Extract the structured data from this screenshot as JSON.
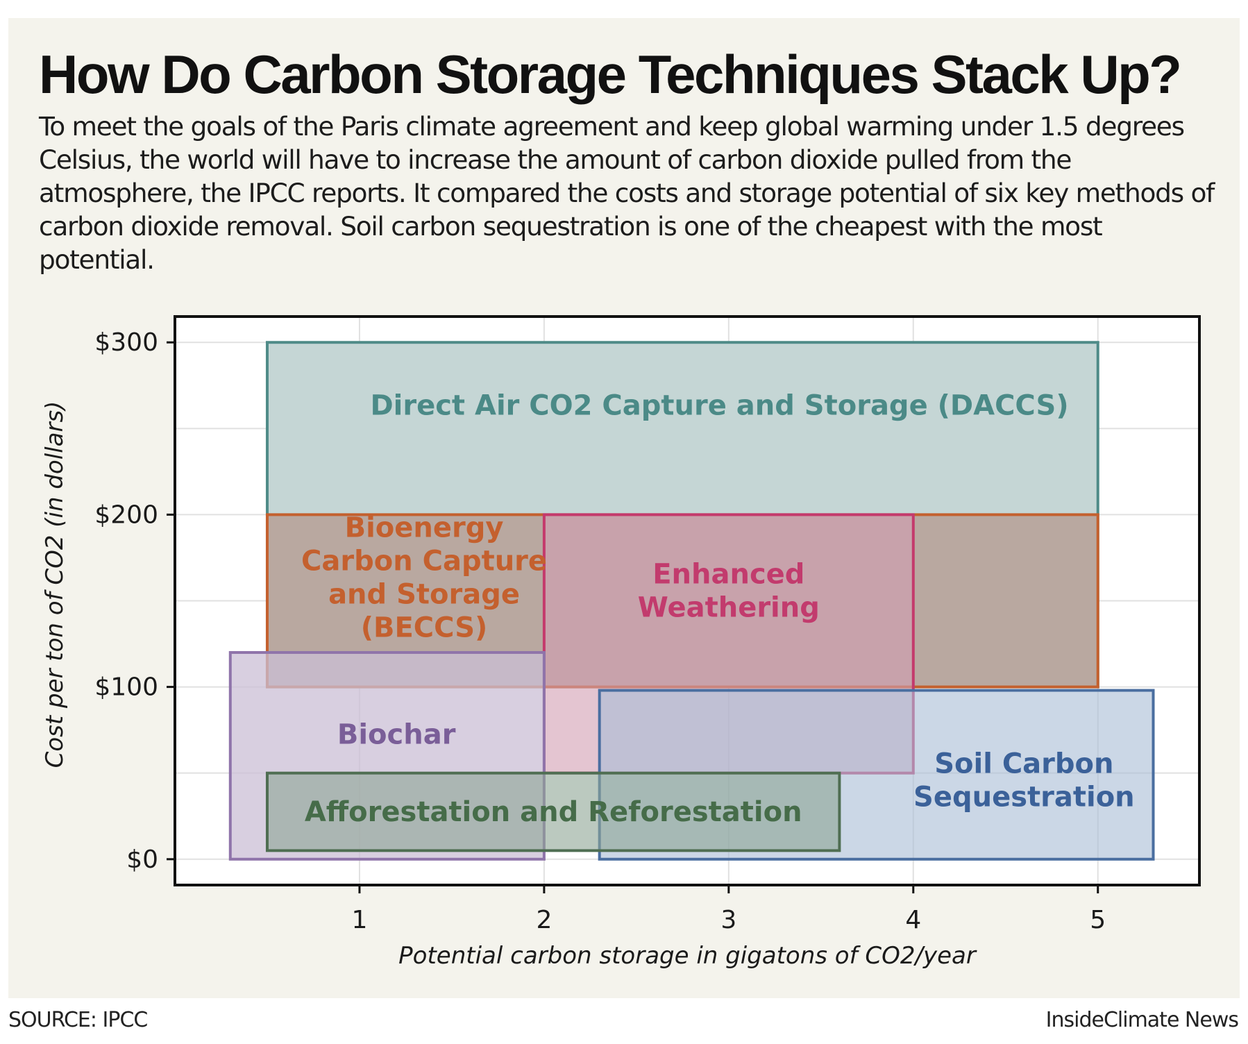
{
  "header": {
    "title": "How Do Carbon Storage Techniques Stack Up?",
    "subtitle": "To meet the goals of the Paris climate agreement and keep global warming under 1.5 degrees Celsius, the world will have to increase the amount of carbon dioxide pulled from the atmosphere, the IPCC reports. It compared the costs and storage potential of six key methods of carbon dioxide removal. Soil carbon sequestration is one of the cheapest with the most potential."
  },
  "footer": {
    "source": "SOURCE: IPCC",
    "credit": "InsideClimate News"
  },
  "chart_data": {
    "type": "range-rectangles",
    "xlabel": "Potential carbon storage in gigatons of CO2/year",
    "ylabel": "Cost per ton of CO2 (in dollars)",
    "xlim": [
      0,
      5.55
    ],
    "ylim": [
      -15,
      315
    ],
    "x_ticks": [
      {
        "value": 1,
        "label": "1"
      },
      {
        "value": 2,
        "label": "2"
      },
      {
        "value": 3,
        "label": "3"
      },
      {
        "value": 4,
        "label": "4"
      },
      {
        "value": 5,
        "label": "5"
      }
    ],
    "y_ticks": [
      {
        "value": 0,
        "label": "$0"
      },
      {
        "value": 100,
        "label": "$100"
      },
      {
        "value": 200,
        "label": "$200"
      },
      {
        "value": 300,
        "label": "$300"
      }
    ],
    "grid": true,
    "series": [
      {
        "name": "Direct Air CO2 Capture and Storage (DACCS)",
        "label_lines": [
          "Direct Air CO2 Capture and Storage (DACCS)"
        ],
        "x_range": [
          0.5,
          5.0
        ],
        "y_range": [
          100,
          300
        ],
        "label_at": [
          2.95,
          258
        ],
        "fill": "#c5d6d5",
        "stroke": "#4f8b88",
        "text_color": "#4b8a87",
        "opacity": 1
      },
      {
        "name": "Bioenergy Carbon Capture and Storage (BECCS)",
        "label_lines": [
          "Bioenergy",
          "Carbon Capture",
          "and Storage",
          "(BECCS)"
        ],
        "x_range": [
          0.5,
          5.0
        ],
        "y_range": [
          100,
          200
        ],
        "label_at": [
          1.35,
          187
        ],
        "fill": "#b6a096",
        "stroke": "#c4602e",
        "text_color": "#c4602e",
        "opacity": 0.85
      },
      {
        "name": "Enhanced Weathering",
        "label_lines": [
          "Enhanced",
          "Weathering"
        ],
        "x_range": [
          2.0,
          4.0
        ],
        "y_range": [
          50,
          200
        ],
        "label_at": [
          3.0,
          160
        ],
        "fill": "#d29eb3",
        "stroke": "#c43a6c",
        "text_color": "#c23b6d",
        "opacity": 0.6
      },
      {
        "name": "Biochar",
        "label_lines": [
          "Biochar"
        ],
        "x_range": [
          0.3,
          2.0
        ],
        "y_range": [
          0,
          120
        ],
        "label_at": [
          1.2,
          67
        ],
        "fill": "#cbbfd5",
        "stroke": "#8f74aa",
        "text_color": "#7a5e98",
        "opacity": 0.75
      },
      {
        "name": "Soil Carbon Sequestration",
        "label_lines": [
          "Soil Carbon",
          "Sequestration"
        ],
        "x_range": [
          2.3,
          5.3
        ],
        "y_range": [
          0,
          98
        ],
        "label_at": [
          4.6,
          50
        ],
        "fill": "#a9bdd6",
        "stroke": "#4a6ea0",
        "text_color": "#3b6199",
        "opacity": 0.6
      },
      {
        "name": "Afforestation and Reforestation",
        "label_lines": [
          "Afforestation and Reforestation"
        ],
        "x_range": [
          0.5,
          3.6
        ],
        "y_range": [
          5,
          50
        ],
        "label_at": [
          2.05,
          22
        ],
        "fill": "#8ea595",
        "stroke": "#4f6e52",
        "text_color": "#466c49",
        "opacity": 0.6
      }
    ]
  }
}
